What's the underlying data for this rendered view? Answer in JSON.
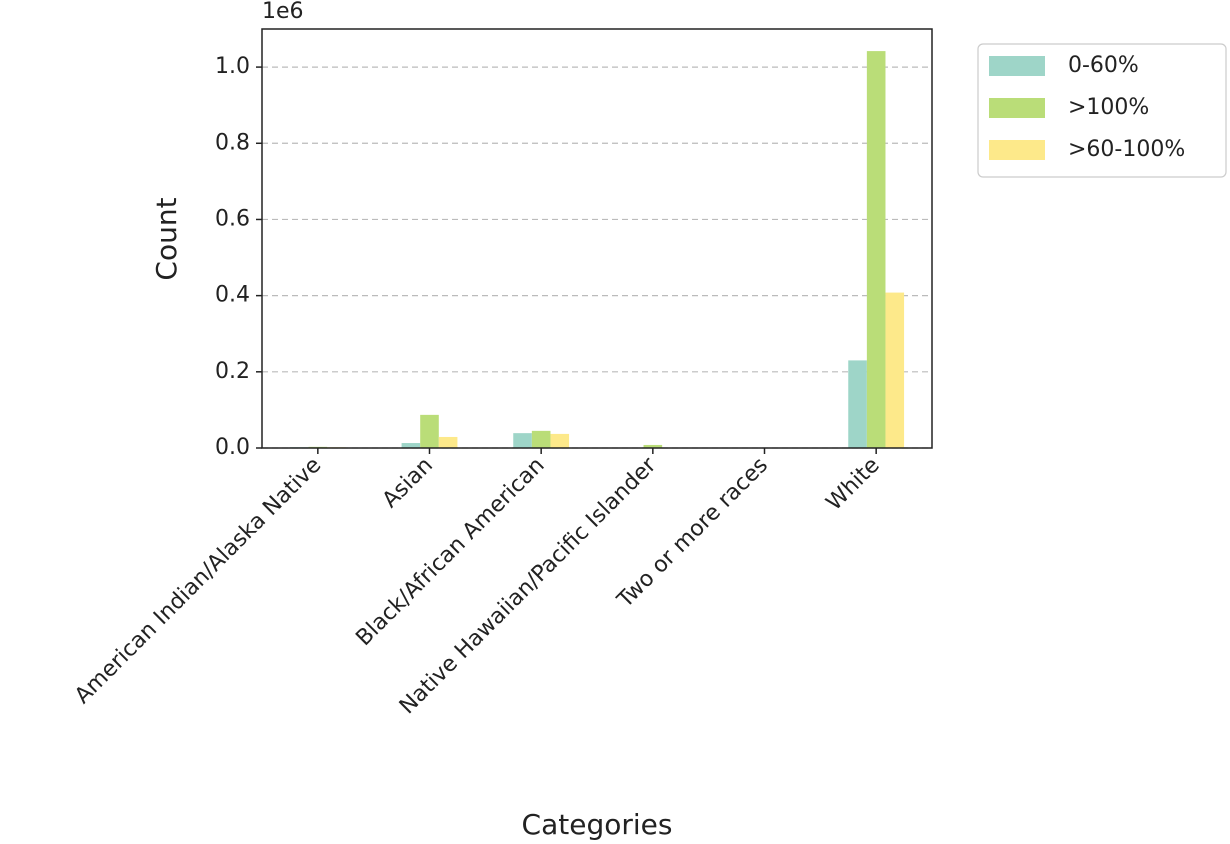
{
  "chart_data": {
    "type": "bar",
    "x_label": "Categories",
    "y_label": "Count",
    "y_offset_label": "1e6",
    "categories": [
      "American Indian/Alaska Native",
      "Asian",
      "Black/African American",
      "Native Hawaiian/Pacific Islander",
      "Two or more races",
      "White"
    ],
    "series": [
      {
        "name": "0-60%",
        "color": "#9ed5c8",
        "values": [
          2000,
          13000,
          39000,
          1000,
          1000,
          230000
        ]
      },
      {
        "name": ">100%",
        "color": "#badd78",
        "values": [
          3000,
          87000,
          45000,
          8000,
          1000,
          1042000
        ]
      },
      {
        "name": ">60-100%",
        "color": "#fde98a",
        "values": [
          2000,
          29000,
          37000,
          1000,
          1000,
          408000
        ]
      }
    ],
    "ylim": [
      0,
      1100000
    ],
    "yticks": [
      {
        "value": 0,
        "label": "0.0"
      },
      {
        "value": 200000,
        "label": "0.2"
      },
      {
        "value": 400000,
        "label": "0.4"
      },
      {
        "value": 600000,
        "label": "0.6"
      },
      {
        "value": 800000,
        "label": "0.8"
      },
      {
        "value": 1000000,
        "label": "1.0"
      }
    ],
    "grid": true,
    "legend": "outside-right"
  }
}
